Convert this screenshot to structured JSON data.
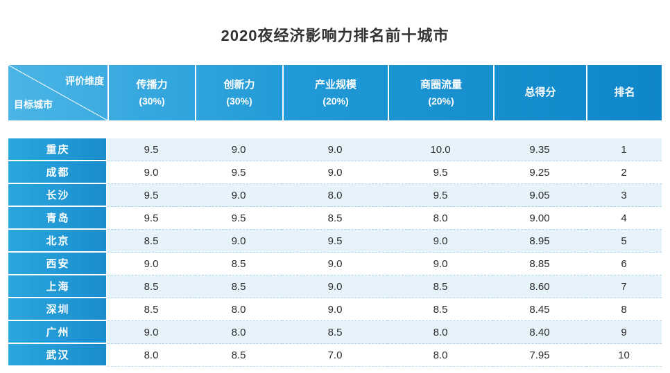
{
  "title": "2020夜经济影响力排名前十城市",
  "table": {
    "corner": {
      "top": "评价维度",
      "bottom": "目标城市"
    },
    "columns": [
      {
        "label": "传播力",
        "weight": "(30%)"
      },
      {
        "label": "创新力",
        "weight": "(30%)"
      },
      {
        "label": "产业规模",
        "weight": "(20%)"
      },
      {
        "label": "商圈流量",
        "weight": "(20%)"
      },
      {
        "label": "总得分",
        "weight": ""
      },
      {
        "label": "排名",
        "weight": ""
      }
    ],
    "rows": [
      {
        "city": "重庆",
        "values": [
          "9.5",
          "9.0",
          "9.0",
          "10.0",
          "9.35",
          "1"
        ]
      },
      {
        "city": "成都",
        "values": [
          "9.0",
          "9.5",
          "9.0",
          "9.5",
          "9.25",
          "2"
        ]
      },
      {
        "city": "长沙",
        "values": [
          "9.5",
          "9.0",
          "8.0",
          "9.5",
          "9.05",
          "3"
        ]
      },
      {
        "city": "青岛",
        "values": [
          "9.5",
          "9.5",
          "8.5",
          "8.0",
          "9.00",
          "4"
        ]
      },
      {
        "city": "北京",
        "values": [
          "8.5",
          "9.0",
          "9.5",
          "9.0",
          "8.95",
          "5"
        ]
      },
      {
        "city": "西安",
        "values": [
          "9.0",
          "8.5",
          "9.0",
          "9.0",
          "8.85",
          "6"
        ]
      },
      {
        "city": "上海",
        "values": [
          "8.5",
          "8.5",
          "9.0",
          "8.5",
          "8.60",
          "7"
        ]
      },
      {
        "city": "深圳",
        "values": [
          "8.5",
          "8.0",
          "9.0",
          "8.5",
          "8.45",
          "8"
        ]
      },
      {
        "city": "广州",
        "values": [
          "9.0",
          "8.0",
          "8.5",
          "8.0",
          "8.40",
          "9"
        ]
      },
      {
        "city": "武汉",
        "values": [
          "8.0",
          "8.5",
          "7.0",
          "8.0",
          "7.95",
          "10"
        ]
      }
    ]
  },
  "colors": {
    "header_gradient_start": "#4ab5e6",
    "header_gradient_end": "#0f86c8",
    "city_cell_blue": "#1f9ad5",
    "row_alt_blue": "#e7f3fb",
    "dashed_line": "#aed3ec",
    "text_dark": "#2b2b2b",
    "title_text": "#333333"
  },
  "chart_data": {
    "type": "table",
    "title": "2020夜经济影响力排名前十城市",
    "columns": [
      "目标城市",
      "传播力(30%)",
      "创新力(30%)",
      "产业规模(20%)",
      "商圈流量(20%)",
      "总得分",
      "排名"
    ],
    "rows": [
      [
        "重庆",
        9.5,
        9.0,
        9.0,
        10.0,
        9.35,
        1
      ],
      [
        "成都",
        9.0,
        9.5,
        9.0,
        9.5,
        9.25,
        2
      ],
      [
        "长沙",
        9.5,
        9.0,
        8.0,
        9.5,
        9.05,
        3
      ],
      [
        "青岛",
        9.5,
        9.5,
        8.5,
        8.0,
        9.0,
        4
      ],
      [
        "北京",
        8.5,
        9.0,
        9.5,
        9.0,
        8.95,
        5
      ],
      [
        "西安",
        9.0,
        8.5,
        9.0,
        9.0,
        8.85,
        6
      ],
      [
        "上海",
        8.5,
        8.5,
        9.0,
        8.5,
        8.6,
        7
      ],
      [
        "深圳",
        8.5,
        8.0,
        9.0,
        8.5,
        8.45,
        8
      ],
      [
        "广州",
        9.0,
        8.0,
        8.5,
        8.0,
        8.4,
        9
      ],
      [
        "武汉",
        8.0,
        8.5,
        7.0,
        8.0,
        7.95,
        10
      ]
    ]
  }
}
